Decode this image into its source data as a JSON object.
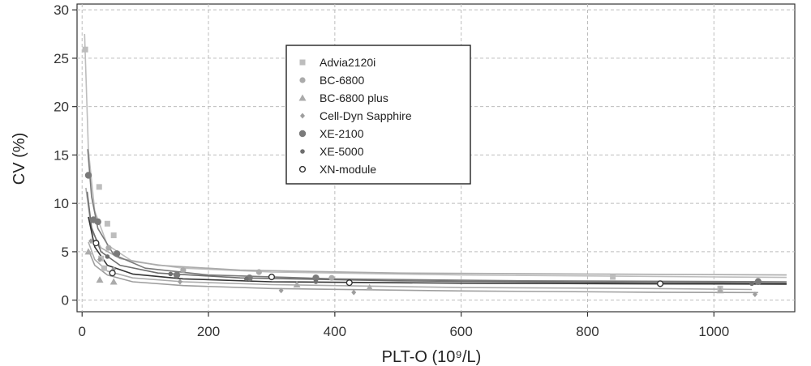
{
  "chart_data": {
    "type": "scatter",
    "xlabel": "PLT-O (10⁹/L)",
    "ylabel": "CV (%)",
    "xlim": [
      -8,
      1128
    ],
    "ylim": [
      -1.2,
      30.6
    ],
    "x_ticks": [
      0,
      200,
      400,
      600,
      800,
      1000
    ],
    "x_tick_labels": [
      "0",
      "200",
      "400",
      "600",
      "800",
      "1000"
    ],
    "y_ticks": [
      0,
      5,
      10,
      15,
      20,
      25,
      30
    ],
    "y_tick_labels": [
      "0",
      "5",
      "10",
      "15",
      "20",
      "25",
      "30"
    ],
    "grid": true,
    "legend_position": "top-center",
    "series": [
      {
        "name": "Advia2120i",
        "marker": "square",
        "color": "#bdbdbd",
        "points": [
          [
            5,
            25.9
          ],
          [
            27,
            11.7
          ],
          [
            40,
            7.9
          ],
          [
            50,
            6.7
          ],
          [
            30,
            4.3
          ],
          [
            35,
            3.3
          ],
          [
            840,
            2.4
          ],
          [
            1010,
            1.2
          ]
        ],
        "fit": [
          [
            4,
            27.5
          ],
          [
            10,
            15.5
          ],
          [
            20,
            9.2
          ],
          [
            40,
            5.7
          ],
          [
            80,
            4.0
          ],
          [
            160,
            3.3
          ],
          [
            300,
            2.9
          ],
          [
            600,
            2.6
          ],
          [
            1000,
            2.4
          ],
          [
            1115,
            2.35
          ]
        ]
      },
      {
        "name": "BC-6800",
        "marker": "circle",
        "color": "#ababab",
        "points": [
          [
            42,
            5.4
          ],
          [
            160,
            3.1
          ],
          [
            280,
            2.9
          ],
          [
            395,
            2.3
          ],
          [
            1070,
            2.0
          ]
        ],
        "fit": [
          [
            6,
            11.6
          ],
          [
            15,
            7.2
          ],
          [
            30,
            5.4
          ],
          [
            60,
            4.3
          ],
          [
            120,
            3.6
          ],
          [
            250,
            3.1
          ],
          [
            500,
            2.8
          ],
          [
            800,
            2.7
          ],
          [
            1115,
            2.6
          ]
        ]
      },
      {
        "name": "BC-6800 plus",
        "marker": "triangle",
        "color": "#ababab",
        "points": [
          [
            10,
            5.0
          ],
          [
            28,
            2.1
          ],
          [
            50,
            1.9
          ],
          [
            340,
            1.6
          ],
          [
            455,
            1.3
          ],
          [
            1010,
            1.0
          ]
        ],
        "fit": [
          [
            10,
            6.0
          ],
          [
            20,
            4.2
          ],
          [
            40,
            3.0
          ],
          [
            80,
            2.3
          ],
          [
            160,
            1.9
          ],
          [
            300,
            1.6
          ],
          [
            600,
            1.3
          ],
          [
            900,
            1.2
          ],
          [
            1060,
            1.1
          ]
        ]
      },
      {
        "name": "Cell-Dyn Sapphire",
        "marker": "diamond",
        "color": "#9e9e9e",
        "points": [
          [
            14,
            6.1
          ],
          [
            28,
            4.2
          ],
          [
            50,
            3.2
          ],
          [
            155,
            1.9
          ],
          [
            315,
            1.0
          ],
          [
            430,
            0.8
          ],
          [
            1065,
            0.6
          ]
        ],
        "fit": [
          [
            10,
            5.2
          ],
          [
            20,
            3.6
          ],
          [
            40,
            2.6
          ],
          [
            80,
            1.9
          ],
          [
            160,
            1.5
          ],
          [
            300,
            1.2
          ],
          [
            600,
            0.95
          ],
          [
            900,
            0.82
          ],
          [
            1070,
            0.78
          ]
        ]
      },
      {
        "name": "XE-2100",
        "marker": "circle-large",
        "color": "#7a7a7a",
        "points": [
          [
            10,
            12.9
          ],
          [
            18,
            8.3
          ],
          [
            25,
            8.1
          ],
          [
            55,
            4.8
          ],
          [
            150,
            2.6
          ],
          [
            265,
            2.3
          ],
          [
            370,
            2.3
          ],
          [
            1070,
            1.9
          ]
        ],
        "fit": [
          [
            9,
            15.6
          ],
          [
            15,
            10.7
          ],
          [
            25,
            7.4
          ],
          [
            50,
            4.7
          ],
          [
            100,
            3.3
          ],
          [
            200,
            2.6
          ],
          [
            400,
            2.2
          ],
          [
            700,
            2.0
          ],
          [
            1115,
            1.9
          ]
        ]
      },
      {
        "name": "XE-5000",
        "marker": "circle-small",
        "color": "#6e6e6e",
        "points": [
          [
            40,
            4.5
          ],
          [
            140,
            2.7
          ],
          [
            260,
            2.2
          ],
          [
            370,
            1.9
          ],
          [
            1060,
            1.7
          ]
        ],
        "fit": [
          [
            8,
            11.2
          ],
          [
            15,
            7.5
          ],
          [
            30,
            5.0
          ],
          [
            60,
            3.6
          ],
          [
            120,
            2.8
          ],
          [
            250,
            2.3
          ],
          [
            500,
            2.0
          ],
          [
            800,
            1.85
          ],
          [
            1115,
            1.75
          ]
        ]
      },
      {
        "name": "XN-module",
        "marker": "circle-open",
        "color": "#333333",
        "points": [
          [
            22,
            5.9
          ],
          [
            48,
            2.8
          ],
          [
            300,
            2.4
          ],
          [
            423,
            1.8
          ],
          [
            915,
            1.7
          ]
        ],
        "fit": [
          [
            10,
            8.6
          ],
          [
            20,
            5.5
          ],
          [
            40,
            3.6
          ],
          [
            80,
            2.7
          ],
          [
            160,
            2.2
          ],
          [
            300,
            1.9
          ],
          [
            600,
            1.75
          ],
          [
            900,
            1.68
          ],
          [
            1115,
            1.65
          ]
        ]
      }
    ]
  }
}
